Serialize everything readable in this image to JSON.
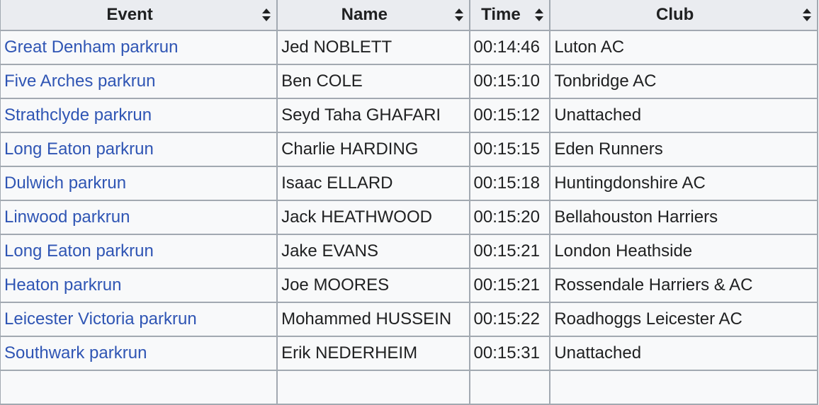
{
  "table": {
    "headers": [
      "Event",
      "Name",
      "Time",
      "Club"
    ],
    "rows": [
      [
        "Great Denham parkrun",
        "Jed NOBLETT",
        "00:14:46",
        "Luton AC"
      ],
      [
        "Five Arches parkrun",
        "Ben COLE",
        "00:15:10",
        "Tonbridge AC"
      ],
      [
        "Strathclyde parkrun",
        "Seyd Taha GHAFARI",
        "00:15:12",
        "Unattached"
      ],
      [
        "Long Eaton parkrun",
        "Charlie HARDING",
        "00:15:15",
        "Eden Runners"
      ],
      [
        "Dulwich parkrun",
        "Isaac ELLARD",
        "00:15:18",
        "Huntingdonshire AC"
      ],
      [
        "Linwood parkrun",
        "Jack HEATHWOOD",
        "00:15:20",
        "Bellahouston Harriers"
      ],
      [
        "Long Eaton parkrun",
        "Jake EVANS",
        "00:15:21",
        "London Heathside"
      ],
      [
        "Heaton parkrun",
        "Joe MOORES",
        "00:15:21",
        "Rossendale Harriers & AC"
      ],
      [
        "Leicester Victoria parkrun",
        "Mohammed HUSSEIN",
        "00:15:22",
        "Roadhoggs Leicester AC"
      ],
      [
        "Southwark parkrun",
        "Erik NEDERHEIM",
        "00:15:31",
        "Unattached"
      ]
    ],
    "sort_icon": "sort-up-down-icon",
    "link_color": "#2f55b4"
  }
}
